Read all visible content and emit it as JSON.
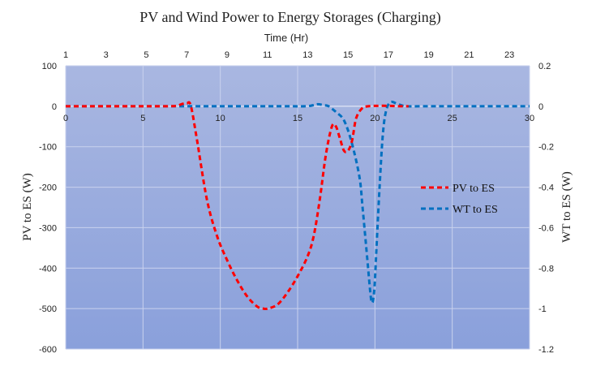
{
  "chart_data": {
    "type": "line",
    "title": "PV and Wind Power to Energy Storages (Charging)",
    "top_axis": {
      "label": "Time (Hr)",
      "range": [
        1,
        24
      ],
      "ticks": [
        "1",
        "3",
        "5",
        "7",
        "9",
        "11",
        "13",
        "15",
        "17",
        "19",
        "21",
        "23"
      ]
    },
    "bottom_axis": {
      "range": [
        0,
        30
      ],
      "ticks": [
        "0",
        "5",
        "10",
        "15",
        "20",
        "25",
        "30"
      ]
    },
    "left_axis": {
      "label": "PV to ES (W)",
      "range": [
        -600,
        100
      ],
      "ticks": [
        "100",
        "0",
        "-100",
        "-200",
        "-300",
        "-400",
        "-500",
        "-600"
      ]
    },
    "right_axis": {
      "label": "WT to ES (W)",
      "range": [
        -1.2,
        0.2
      ],
      "ticks": [
        "0.2",
        "0",
        "-0.2",
        "-0.4",
        "-0.6",
        "-0.8",
        "-1",
        "-1.2"
      ]
    },
    "legend_position": "right-middle",
    "series": [
      {
        "name": "PV to ES",
        "color": "#ff0000",
        "axis": "left",
        "x_axis": "top",
        "x": [
          1,
          2,
          3,
          4,
          5,
          6,
          6.5,
          6.8,
          7.0,
          7.2,
          7.5,
          8.0,
          8.5,
          9.0,
          9.5,
          10.0,
          10.5,
          10.8,
          11.0,
          11.5,
          12.0,
          12.5,
          13.0,
          13.3,
          13.6,
          13.9,
          14.2,
          14.4,
          14.6,
          14.8,
          15.0,
          15.2,
          15.4,
          15.7,
          16.0,
          16.5,
          17.0,
          17.5,
          18.0
        ],
        "y": [
          0,
          0,
          0,
          0,
          0,
          0,
          1,
          6,
          7,
          2,
          -80,
          -230,
          -320,
          -380,
          -430,
          -470,
          -495,
          -500,
          -500,
          -490,
          -460,
          -420,
          -370,
          -320,
          -230,
          -120,
          -50,
          -50,
          -80,
          -110,
          -110,
          -85,
          -30,
          -5,
          0,
          1,
          1,
          0,
          0
        ]
      },
      {
        "name": "WT to ES",
        "color": "#0070c0",
        "axis": "right",
        "x_axis": "bottom",
        "x": [
          0,
          5,
          10,
          14,
          15.5,
          16,
          16.3,
          16.7,
          17,
          17.5,
          18,
          18.5,
          19,
          19.2,
          19.5,
          19.7,
          19.8,
          19.9,
          20.0,
          20.1,
          20.3,
          20.5,
          20.7,
          21.0,
          21.5,
          22,
          23,
          25,
          30
        ],
        "y": [
          0,
          0,
          0,
          0,
          0,
          0.005,
          0.01,
          0.005,
          0,
          -0.03,
          -0.07,
          -0.18,
          -0.35,
          -0.5,
          -0.75,
          -0.92,
          -0.97,
          -0.95,
          -0.86,
          -0.7,
          -0.4,
          -0.15,
          -0.03,
          0.02,
          0.01,
          0,
          0,
          0,
          0
        ]
      }
    ]
  }
}
